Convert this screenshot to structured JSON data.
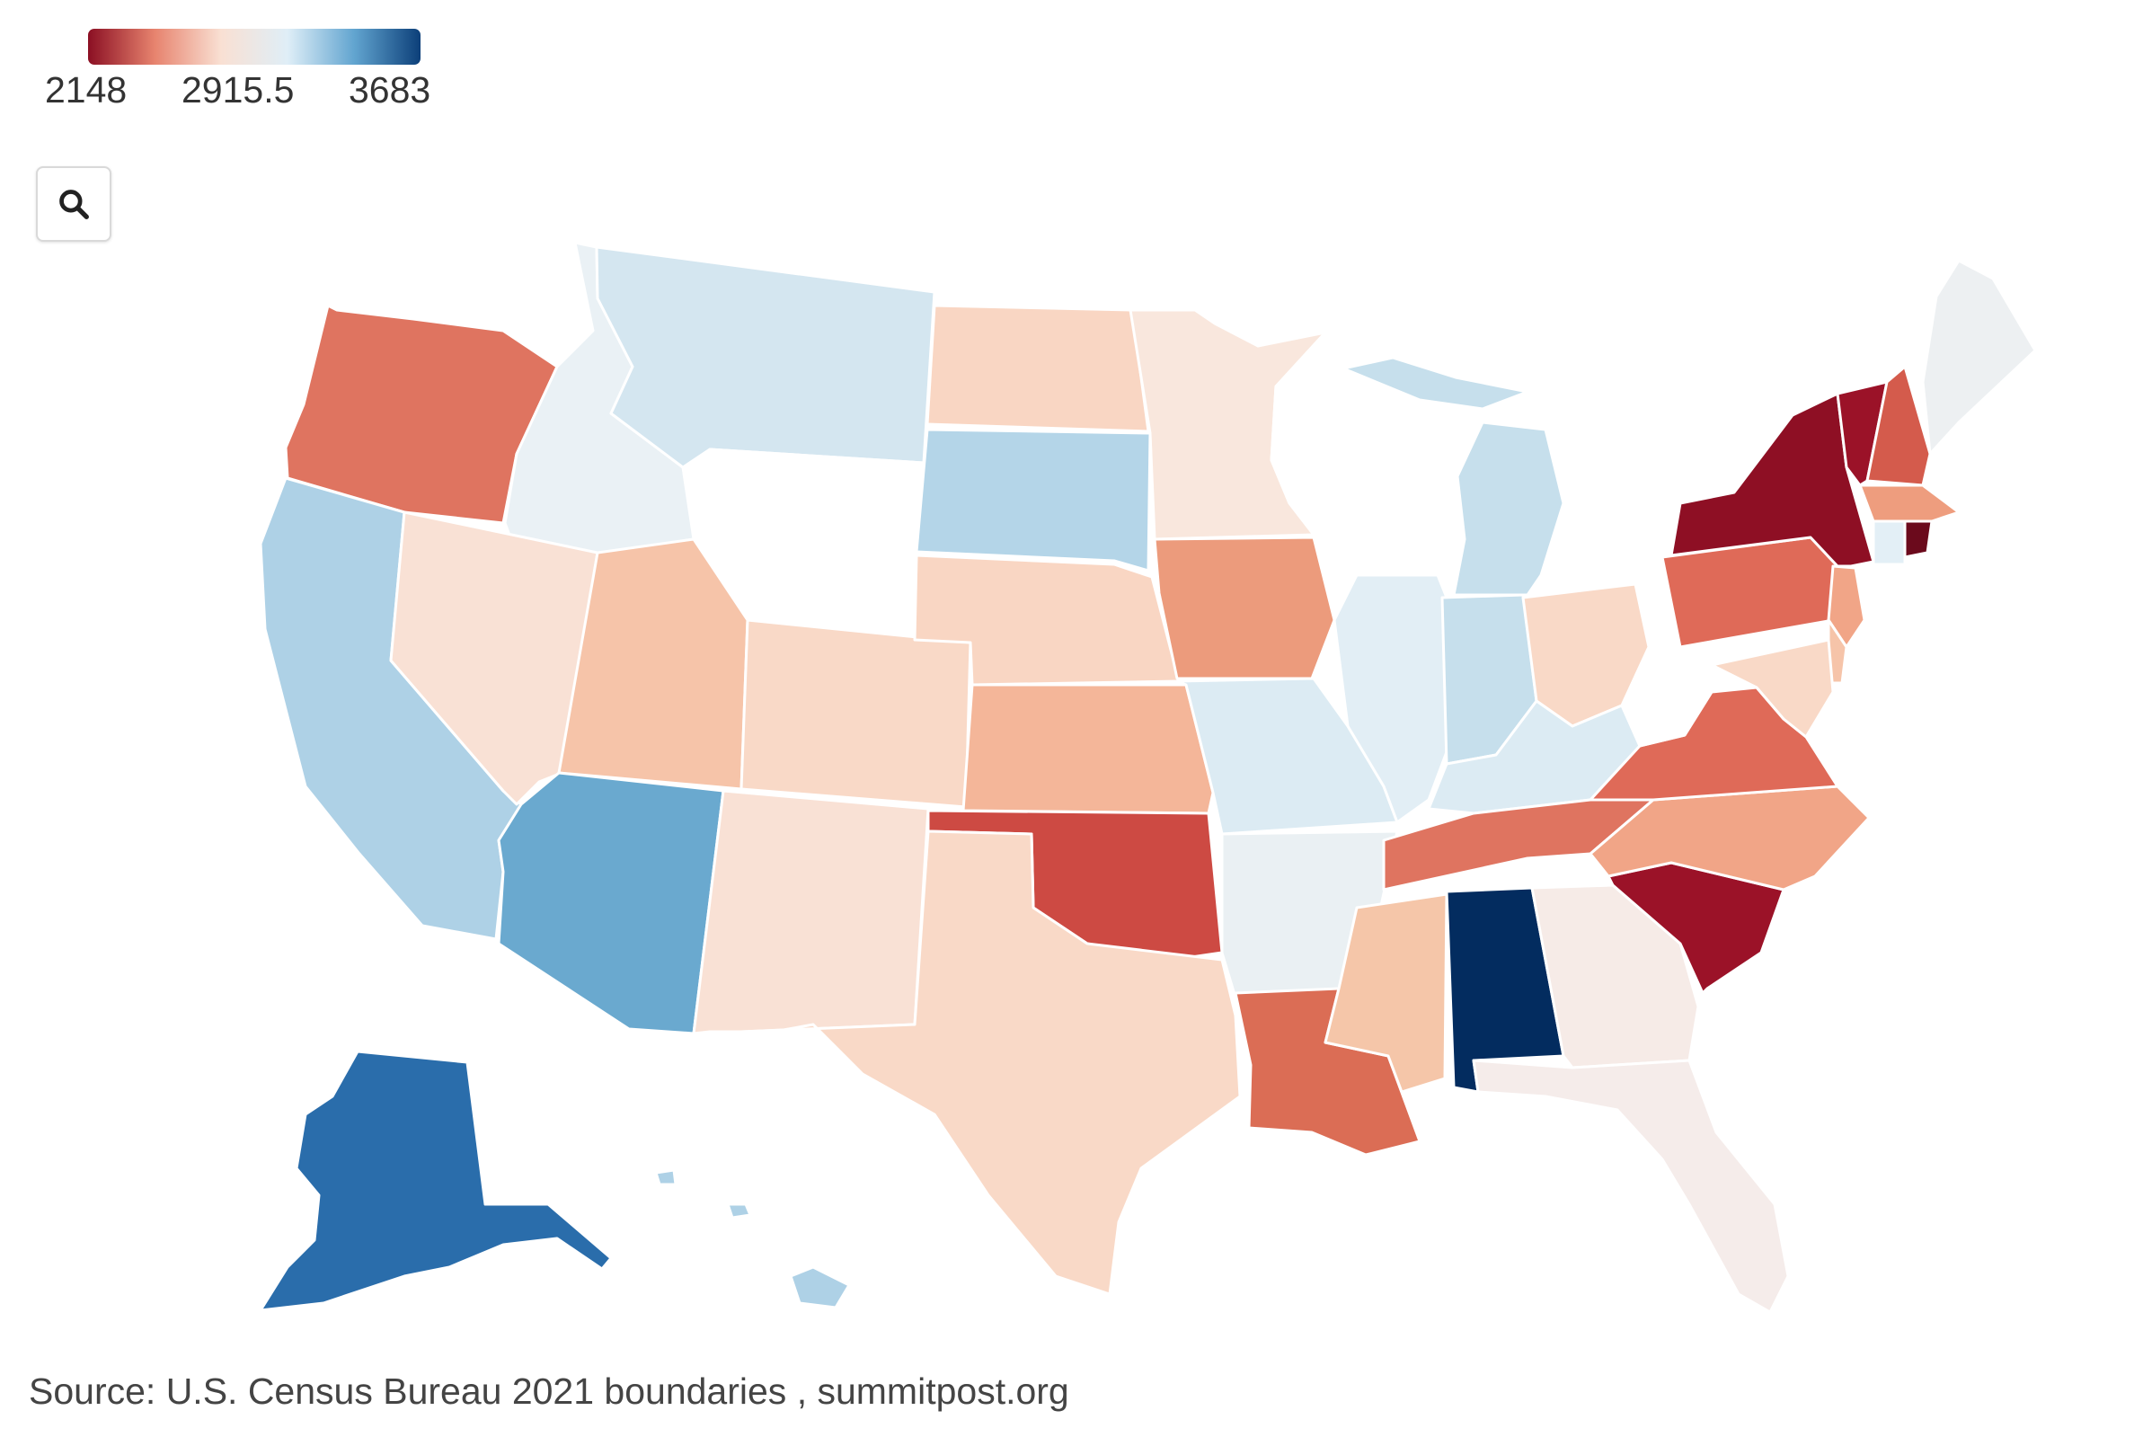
{
  "legend": {
    "ticks": [
      "2148",
      "2915.5",
      "3683"
    ],
    "colors": [
      "#8b0f23",
      "#e7836e",
      "#f9e0d3",
      "#dfeef7",
      "#62a5d0",
      "#0c3f79"
    ]
  },
  "toolbar": {
    "zoom_icon": "search-icon"
  },
  "source_text": "Source: U.S. Census Bureau 2021 boundaries , summitpost.org",
  "map_data": {
    "states": [
      {
        "id": "WA",
        "color": "#ffffff"
      },
      {
        "id": "OR",
        "color": "#df7460"
      },
      {
        "id": "CA",
        "color": "#aed1e6"
      },
      {
        "id": "ID",
        "color": "#eaf1f5"
      },
      {
        "id": "NV",
        "color": "#f9e1d5"
      },
      {
        "id": "MT",
        "color": "#d4e6f0"
      },
      {
        "id": "WY",
        "color": "#ffffff"
      },
      {
        "id": "UT",
        "color": "#f6c4a9"
      },
      {
        "id": "CO",
        "color": "#f9d9c7"
      },
      {
        "id": "AZ",
        "color": "#6aa9cf"
      },
      {
        "id": "NM",
        "color": "#f9e1d5"
      },
      {
        "id": "ND",
        "color": "#f9d6c3"
      },
      {
        "id": "SD",
        "color": "#b4d5e8"
      },
      {
        "id": "NE",
        "color": "#f9d6c3"
      },
      {
        "id": "KS",
        "color": "#f4b699"
      },
      {
        "id": "OK",
        "color": "#cd4a43"
      },
      {
        "id": "TX",
        "color": "#f9d9c7"
      },
      {
        "id": "MN",
        "color": "#f9e7dd"
      },
      {
        "id": "IA",
        "color": "#ec9b7c"
      },
      {
        "id": "MO",
        "color": "#dcebf3"
      },
      {
        "id": "AR",
        "color": "#eaf0f3"
      },
      {
        "id": "LA",
        "color": "#db6d55"
      },
      {
        "id": "WI",
        "color": "#ffffff"
      },
      {
        "id": "IL",
        "color": "#e2eef5"
      },
      {
        "id": "MI",
        "color": "#c6dfec"
      },
      {
        "id": "IN",
        "color": "#c6dfec"
      },
      {
        "id": "OH",
        "color": "#f9d9c7"
      },
      {
        "id": "KY",
        "color": "#dcebf3"
      },
      {
        "id": "TN",
        "color": "#df7460"
      },
      {
        "id": "MS",
        "color": "#f5c6a9"
      },
      {
        "id": "AL",
        "color": "#032c5f"
      },
      {
        "id": "GA",
        "color": "#f6ebe7"
      },
      {
        "id": "FL",
        "color": "#f5ecea"
      },
      {
        "id": "SC",
        "color": "#9b1228"
      },
      {
        "id": "NC",
        "color": "#f1a587"
      },
      {
        "id": "VA",
        "color": "#df6a58"
      },
      {
        "id": "WV",
        "color": "#ffffff"
      },
      {
        "id": "PA",
        "color": "#df6a58"
      },
      {
        "id": "NY",
        "color": "#8e0f24"
      },
      {
        "id": "VT",
        "color": "#9b1228"
      },
      {
        "id": "NH",
        "color": "#d45b4c"
      },
      {
        "id": "ME",
        "color": "#edf0f2"
      },
      {
        "id": "MA",
        "color": "#ee9d7e"
      },
      {
        "id": "CT",
        "color": "#e3eff6"
      },
      {
        "id": "RI",
        "color": "#6b0a1c"
      },
      {
        "id": "NJ",
        "color": "#f1a587"
      },
      {
        "id": "DE",
        "color": "#f6c4a9"
      },
      {
        "id": "MD",
        "color": "#f9d9c7"
      },
      {
        "id": "AK",
        "color": "#2a6dab"
      },
      {
        "id": "HI",
        "color": "#aed1e6"
      }
    ]
  }
}
